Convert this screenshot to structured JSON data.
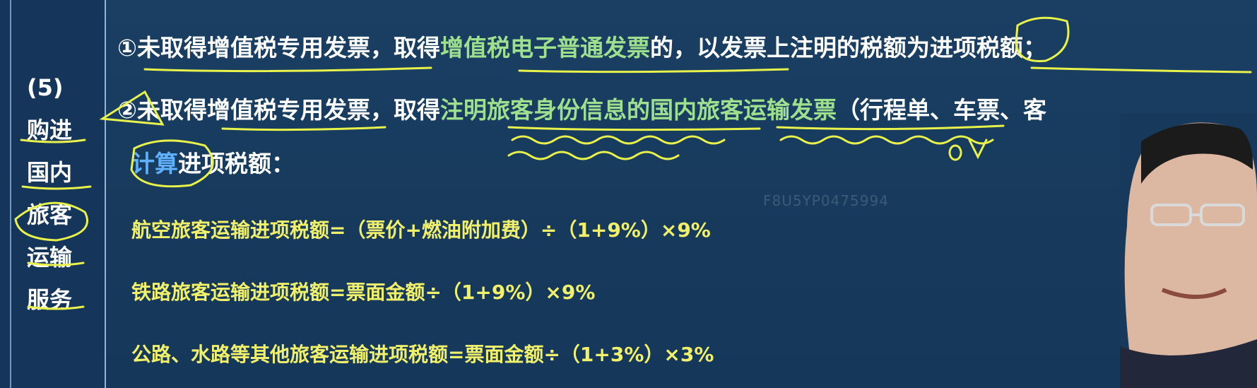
{
  "sidebar": {
    "number": "(5)",
    "items": [
      "购进",
      "国内",
      "旅客",
      "运输",
      "服务"
    ]
  },
  "main": {
    "line1": {
      "num": "①",
      "a": "未取得",
      "b": "增值税专用发票",
      "c": "，取得",
      "d": "增值税电子普通发票",
      "e": "的，以发票上注明的",
      "f": "税额为进项税额",
      "g": "；"
    },
    "line2": {
      "num": "②",
      "a": "未取得",
      "b": "增值税专用发票",
      "c": "，取得",
      "d": "注明旅客身份信息的国内旅客运输发票",
      "e": "（行程单、车票、客"
    },
    "line3": {
      "a": "计算",
      "b": "进项税额："
    },
    "formulas": [
      "航空旅客运输进项税额=（票价+燃油附加费）÷（1+9%）×9%",
      "铁路旅客运输进项税额=票面金额÷（1+9%）×9%",
      "公路、水路等其他旅客运输进项税额=票面金额÷（1+3%）×3%"
    ],
    "watermark": "F8U5YP0475994"
  },
  "annotations": {
    "ov_mark": "OV"
  }
}
